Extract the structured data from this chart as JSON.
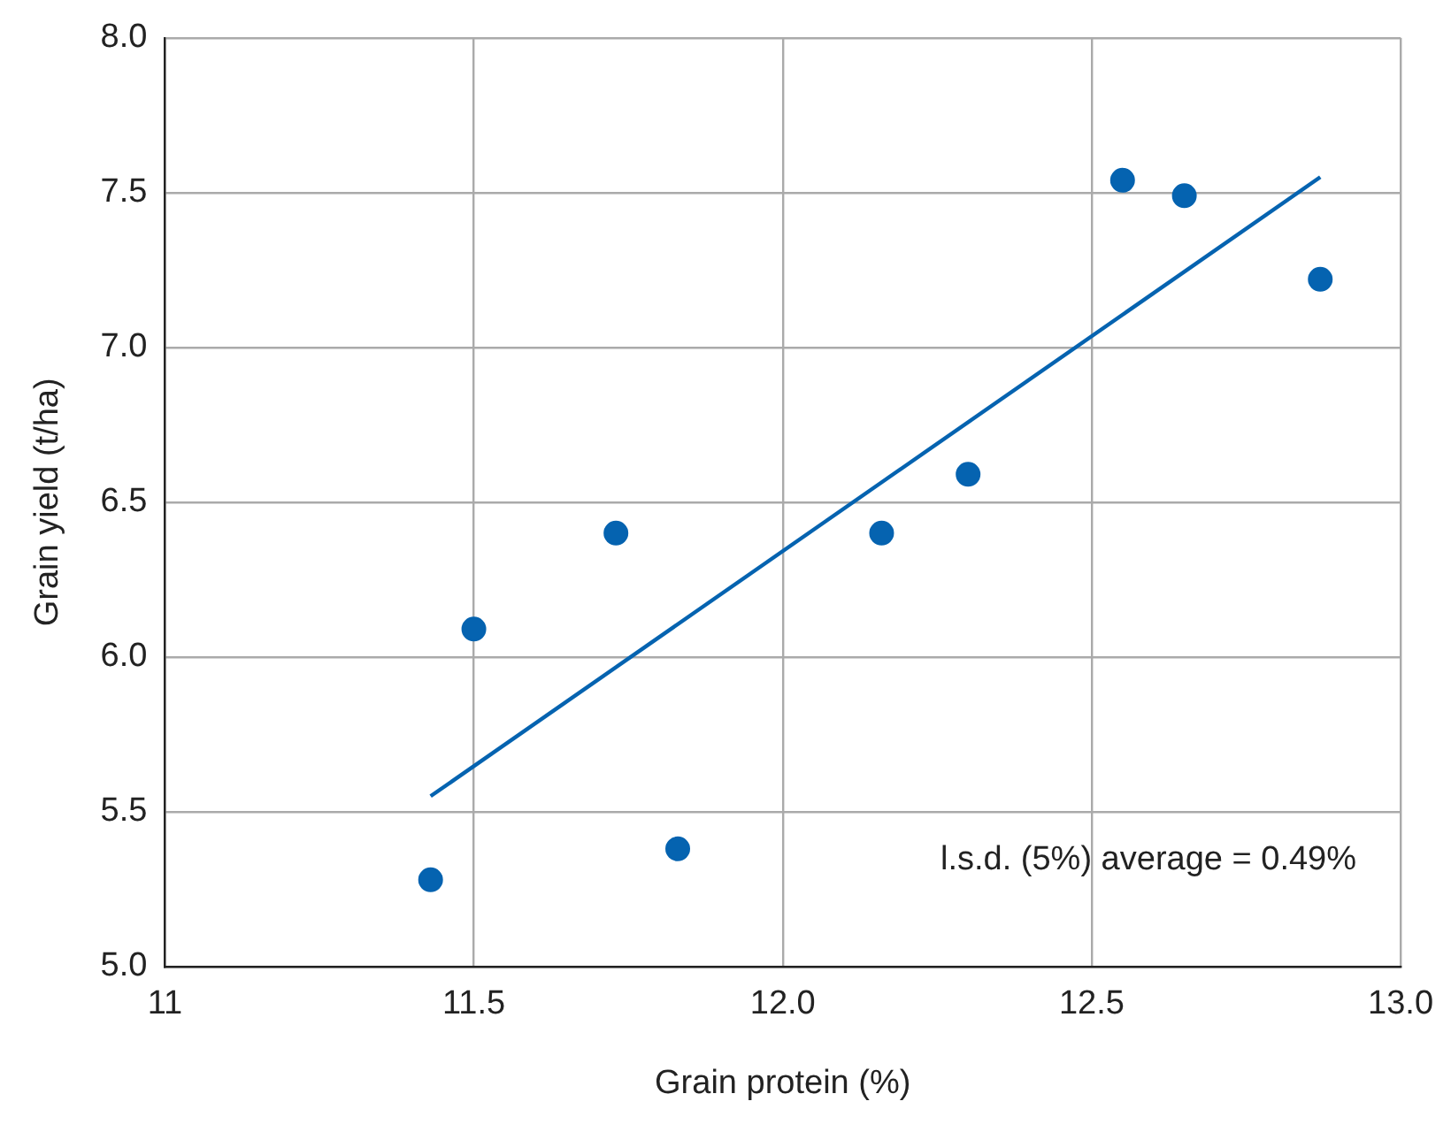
{
  "chart_data": {
    "type": "scatter",
    "xlabel": "Grain protein (%)",
    "ylabel": "Grain yield (t/ha)",
    "annotations": [
      "l.s.d. (5%) average = 0.49%"
    ],
    "series": [
      {
        "marker": "circle",
        "color": "#0563b0",
        "x": [
          11.43,
          11.5,
          11.73,
          11.83,
          12.16,
          12.3,
          12.55,
          12.65,
          12.87
        ],
        "values": [
          5.28,
          6.09,
          6.4,
          5.38,
          6.4,
          6.59,
          7.54,
          7.49,
          7.22
        ]
      },
      {
        "type": "line",
        "marker": "none",
        "color": "#0563b0",
        "x": [
          11.43,
          12.87
        ],
        "values": [
          5.55,
          7.55
        ]
      }
    ],
    "xlim": [
      11,
      13
    ],
    "xticks": [
      11,
      11.5,
      {
        "value": 12,
        "label": "12.0"
      },
      12.5,
      {
        "value": 13,
        "label": "13.0"
      }
    ],
    "ylim": [
      5,
      8
    ],
    "yticks": [
      {
        "value": 5,
        "label": "5.0"
      },
      5.5,
      {
        "value": 6,
        "label": "6.0"
      },
      6.5,
      {
        "value": 7,
        "label": "7.0"
      },
      7.5,
      {
        "value": 8,
        "label": "8.0"
      }
    ],
    "grid": true,
    "legend": false,
    "line_style": "solid"
  }
}
